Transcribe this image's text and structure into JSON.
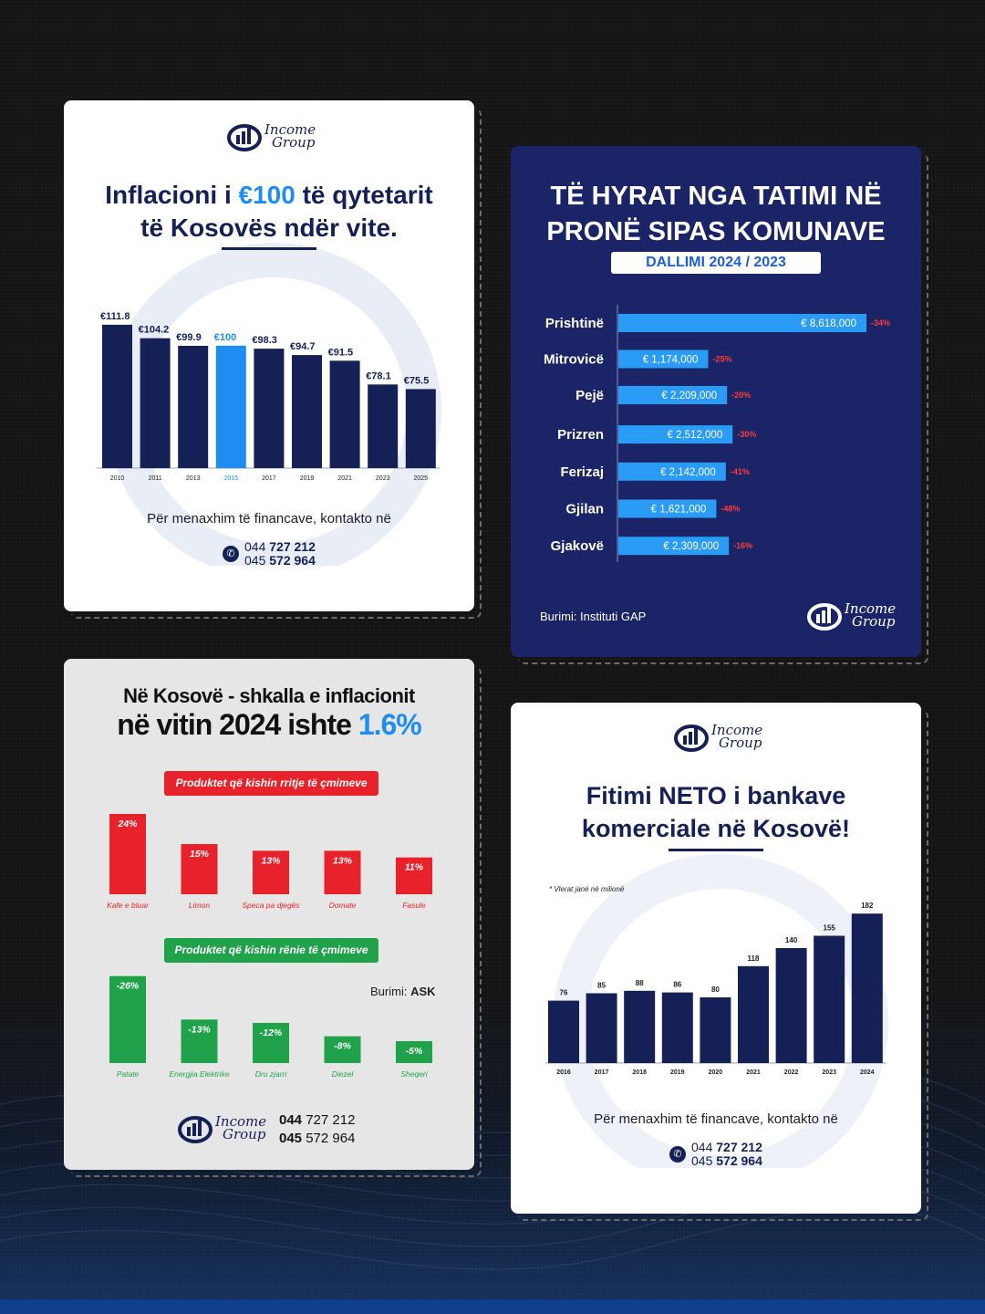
{
  "brand": {
    "name_line1": "Income",
    "name_line2": "Group"
  },
  "colors": {
    "navy": "#152057",
    "accent_blue": "#1d8df2",
    "card2_bg": "#1b2466",
    "bar_blue": "#2a9cf5",
    "red": "#e8222a",
    "green": "#1fa24a"
  },
  "card1": {
    "title_pre": "Inflacioni i ",
    "title_highlight": "€100",
    "title_post": " të qytetarit",
    "title_line2": "të Kosovës ndër vite.",
    "contact_text": "Për menaxhim të financave, kontakto në",
    "phone1_prefix": "044 ",
    "phone1_bold": "727 212",
    "phone2_prefix": "045 ",
    "phone2_bold": "572 964"
  },
  "card2": {
    "title_line1": "TË HYRAT NGA TATIMI NË",
    "title_line2": "PRONË SIPAS KOMUNAVE",
    "subtitle": "DALLIMI 2024 / 2023",
    "source": "Burimi: Instituti GAP"
  },
  "card3": {
    "title_line1": "Në Kosovë - shkalla e inflacionit",
    "title_line2_pre": "në vitin 2024 ishte ",
    "title_line2_highlight": "1.6%",
    "pill_up": "Produktet që kishin rritje të çmimeve",
    "pill_down": "Produktet që kishin rënie të çmimeve",
    "source_label": "Burimi: ",
    "source_value": "ASK",
    "phone1_bold": "044",
    "phone1_rest": " 727 212",
    "phone2_bold": "045",
    "phone2_rest": " 572 964"
  },
  "card4": {
    "title_line1": "Fitimi NETO i bankave",
    "title_line2": "komerciale në Kosovë!",
    "note": "* Vlerat janë në milionë",
    "contact_text": "Për menaxhim të financave, kontakto në",
    "phone1_prefix": "044 ",
    "phone1_bold": "727 212",
    "phone2_prefix": "045 ",
    "phone2_bold": "572 964"
  },
  "chart_data": [
    {
      "id": "inflation100",
      "type": "bar",
      "categories": [
        "2010",
        "2011",
        "2013",
        "2015",
        "2017",
        "2019",
        "2021",
        "2023",
        "2025"
      ],
      "values": [
        111.8,
        104.2,
        99.9,
        100,
        98.3,
        94.7,
        91.5,
        78.1,
        75.5
      ],
      "labels": [
        "€111.8",
        "€104.2",
        "€99.9",
        "€100",
        "€98.3",
        "€94.7",
        "€91.5",
        "€78.1",
        "€75.5"
      ],
      "highlight_index": 3,
      "ylim": [
        0,
        120
      ]
    },
    {
      "id": "propertyTax",
      "type": "bar",
      "orientation": "horizontal",
      "categories": [
        "Prishtinë",
        "Mitrovicë",
        "Pejë",
        "Prizren",
        "Ferizaj",
        "Gjilan",
        "Gjakovë"
      ],
      "values": [
        8618000,
        1174000,
        2209000,
        2512000,
        2142000,
        1621000,
        2309000
      ],
      "labels": [
        "€ 8,618,000",
        "€ 1,174,000",
        "€ 2,209,000",
        "€ 2,512,000",
        "€ 2,142,000",
        "€ 1,621,000",
        "€ 2,309,000"
      ],
      "changes": [
        "-34%",
        "-25%",
        "-20%",
        "-30%",
        "-41%",
        "-48%",
        "-16%"
      ]
    },
    {
      "id": "priceIncrease",
      "type": "bar",
      "categories": [
        "Kafe e bluar",
        "Limon",
        "Speca pa djegës",
        "Domate",
        "Fasule"
      ],
      "values": [
        24,
        15,
        13,
        13,
        11
      ],
      "labels": [
        "24%",
        "15%",
        "13%",
        "13%",
        "11%"
      ]
    },
    {
      "id": "priceDecrease",
      "type": "bar",
      "categories": [
        "Patate",
        "Energjia Elektrike",
        "Dru zjarri",
        "Diezel",
        "Sheqeri"
      ],
      "values": [
        -26,
        -13,
        -12,
        -8,
        -5
      ],
      "labels": [
        "-26%",
        "-13%",
        "-12%",
        "-8%",
        "-5%"
      ]
    },
    {
      "id": "bankProfit",
      "type": "bar",
      "categories": [
        "2016",
        "2017",
        "2018",
        "2019",
        "2020",
        "2021",
        "2022",
        "2023",
        "2024"
      ],
      "values": [
        76,
        85,
        88,
        86,
        80,
        118,
        140,
        155,
        182
      ],
      "labels": [
        "76",
        "85",
        "88",
        "86",
        "80",
        "118",
        "140",
        "155",
        "182"
      ],
      "ylim": [
        0,
        200
      ]
    }
  ]
}
